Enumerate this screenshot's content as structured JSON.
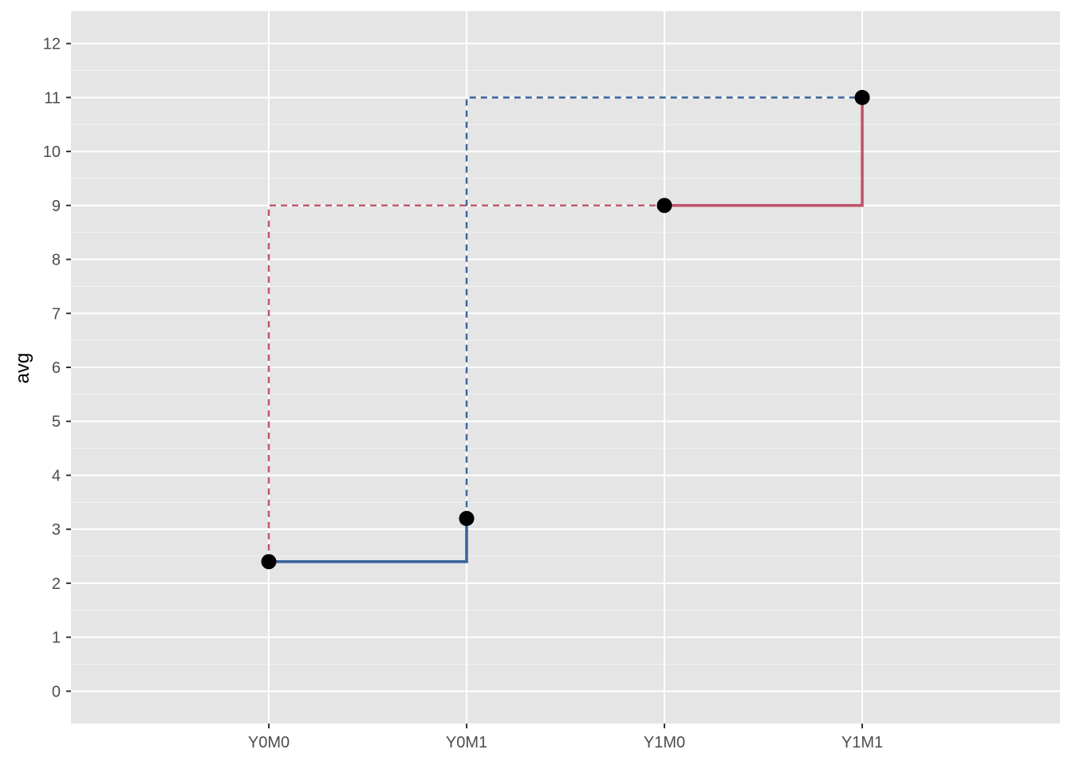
{
  "chart_data": {
    "type": "line",
    "title": "",
    "xlabel": "",
    "ylabel": "avg",
    "categories": [
      "Y0M0",
      "Y0M1",
      "Y1M0",
      "Y1M1"
    ],
    "ylim": [
      -0.6,
      12.6
    ],
    "y_ticks": [
      "0",
      "1",
      "2",
      "3",
      "4",
      "5",
      "6",
      "7",
      "8",
      "9",
      "10",
      "11",
      "12"
    ],
    "grid": true,
    "points": [
      {
        "x": "Y0M0",
        "y": 2.4
      },
      {
        "x": "Y0M1",
        "y": 3.2
      },
      {
        "x": "Y1M0",
        "y": 9.0
      },
      {
        "x": "Y1M1",
        "y": 11.0
      }
    ],
    "series": [
      {
        "color": "#3a6499",
        "style": "solid",
        "path": [
          {
            "x": "Y0M0",
            "y": 2.4
          },
          {
            "x": "Y0M1",
            "y": 2.4
          },
          {
            "x": "Y0M1",
            "y": 3.2
          }
        ]
      },
      {
        "color": "#c0566b",
        "style": "solid",
        "path": [
          {
            "x": "Y1M0",
            "y": 9.0
          },
          {
            "x": "Y1M1",
            "y": 9.0
          },
          {
            "x": "Y1M1",
            "y": 11.0
          }
        ]
      },
      {
        "color": "#c0566b",
        "style": "dashed",
        "path": [
          {
            "x": "Y0M0",
            "y": 2.4
          },
          {
            "x": "Y0M0",
            "y": 9.0
          },
          {
            "x": "Y1M0",
            "y": 9.0
          }
        ]
      },
      {
        "color": "#3a6499",
        "style": "dashed",
        "path": [
          {
            "x": "Y0M1",
            "y": 3.2
          },
          {
            "x": "Y0M1",
            "y": 11.0
          },
          {
            "x": "Y1M1",
            "y": 11.0
          }
        ]
      }
    ],
    "colors": {
      "panel": "#e5e5e5",
      "grid": "#ffffff",
      "point": "#000000",
      "text": "#4d4d4d"
    }
  }
}
